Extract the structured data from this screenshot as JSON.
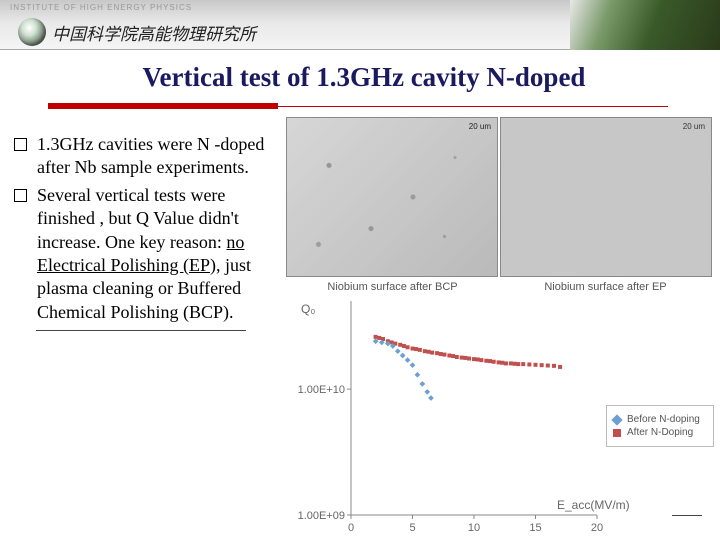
{
  "header": {
    "institute_en": "INSTITUTE OF HIGH ENERGY PHYSICS",
    "institute_cn": "中国科学院高能物理研究所"
  },
  "title": "Vertical test of 1.3GHz cavity N-doped",
  "bullets": [
    "1.3GHz cavities were N -doped after Nb sample experiments.",
    "Several vertical tests were finished , but Q Value didn't increase. One key reason: <span class=\"u\">no Electrical Polishing (EP),</span> just plasma cleaning or Buffered Chemical Polishing (BCP)."
  ],
  "surface_images": {
    "scale_label_left": "20 um",
    "scale_label_right": "20 um",
    "caption_left": "Niobium surface after BCP",
    "caption_right": "Niobium surface after EP"
  },
  "chart": {
    "type": "scatter",
    "y_label": "Q₀",
    "x_label": "E_acc(MV/m)",
    "x_range": [
      0,
      20
    ],
    "x_ticks": [
      0,
      5,
      10,
      15,
      20
    ],
    "y_log_ticks": [
      {
        "value": 1000000000.0,
        "label": "1.00E+09"
      },
      {
        "value": 10000000000.0,
        "label": "1.00E+10"
      }
    ],
    "y_range_log": [
      9,
      10.7
    ],
    "colors": {
      "before": "#6d9fd1",
      "after": "#c0504d",
      "axis": "#888888",
      "bg": "#ffffff"
    },
    "marker": {
      "before_shape": "diamond",
      "after_shape": "square",
      "size": 4
    },
    "legend": [
      {
        "label": "Before N-doping",
        "color": "#6d9fd1",
        "shape": "diamond"
      },
      {
        "label": "After N-Doping",
        "color": "#c0504d",
        "shape": "square"
      }
    ],
    "series_before": [
      [
        2.0,
        24000000000.0
      ],
      [
        2.5,
        23500000000.0
      ],
      [
        3.0,
        23000000000.0
      ],
      [
        3.4,
        22000000000.0
      ],
      [
        3.8,
        20000000000.0
      ],
      [
        4.2,
        18500000000.0
      ],
      [
        4.6,
        17000000000.0
      ],
      [
        5.0,
        15500000000.0
      ],
      [
        5.4,
        13000000000.0
      ],
      [
        5.8,
        11000000000.0
      ],
      [
        6.2,
        9500000000.0
      ],
      [
        6.5,
        8500000000.0
      ]
    ],
    "series_after": [
      [
        2.0,
        26000000000.0
      ],
      [
        2.3,
        25500000000.0
      ],
      [
        2.6,
        25000000000.0
      ],
      [
        3.0,
        24000000000.0
      ],
      [
        3.3,
        23500000000.0
      ],
      [
        3.6,
        23000000000.0
      ],
      [
        4.0,
        22500000000.0
      ],
      [
        4.3,
        22000000000.0
      ],
      [
        4.6,
        21500000000.0
      ],
      [
        5.0,
        21000000000.0
      ],
      [
        5.3,
        20800000000.0
      ],
      [
        5.6,
        20500000000.0
      ],
      [
        6.0,
        20000000000.0
      ],
      [
        6.3,
        19800000000.0
      ],
      [
        6.6,
        19500000000.0
      ],
      [
        7.0,
        19300000000.0
      ],
      [
        7.3,
        19000000000.0
      ],
      [
        7.6,
        18800000000.0
      ],
      [
        8.0,
        18500000000.0
      ],
      [
        8.3,
        18300000000.0
      ],
      [
        8.6,
        18000000000.0
      ],
      [
        9.0,
        17800000000.0
      ],
      [
        9.3,
        17700000000.0
      ],
      [
        9.6,
        17500000000.0
      ],
      [
        10.0,
        17300000000.0
      ],
      [
        10.3,
        17200000000.0
      ],
      [
        10.6,
        17000000000.0
      ],
      [
        11.0,
        16800000000.0
      ],
      [
        11.3,
        16700000000.0
      ],
      [
        11.6,
        16500000000.0
      ],
      [
        12.0,
        16300000000.0
      ],
      [
        12.3,
        16200000000.0
      ],
      [
        12.6,
        16000000000.0
      ],
      [
        13.0,
        16000000000.0
      ],
      [
        13.3,
        15900000000.0
      ],
      [
        13.6,
        15800000000.0
      ],
      [
        14.0,
        15800000000.0
      ],
      [
        14.5,
        15700000000.0
      ],
      [
        15.0,
        15600000000.0
      ],
      [
        15.5,
        15500000000.0
      ],
      [
        16.0,
        15400000000.0
      ],
      [
        16.5,
        15300000000.0
      ],
      [
        17.0,
        15000000000.0
      ]
    ]
  }
}
